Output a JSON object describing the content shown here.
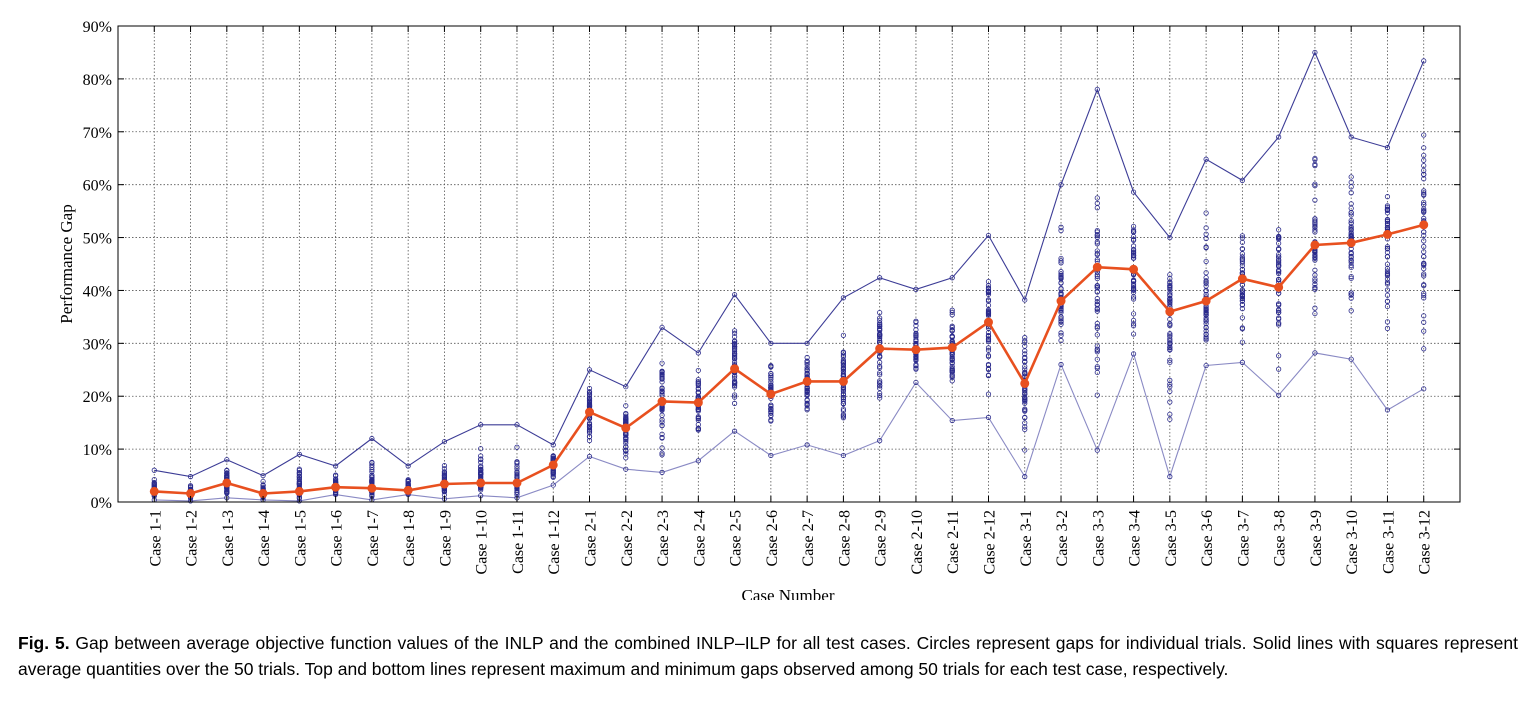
{
  "caption": {
    "label": "Fig. 5.",
    "text": " Gap between average objective function values of the INLP and the combined INLP–ILP for all test cases. Circles represent gaps for individual trials. Solid lines with squares represent average quantities over the 50 trials. Top and bottom lines represent maximum and minimum gaps observed among 50 trials for each test case, respectively."
  },
  "chart_data": {
    "type": "line",
    "xlabel": "Case Number",
    "ylabel": "Performance Gap",
    "ylim": [
      0,
      90
    ],
    "yticks": [
      0,
      10,
      20,
      30,
      40,
      50,
      60,
      70,
      80,
      90
    ],
    "ytick_labels": [
      "0%",
      "10%",
      "20%",
      "30%",
      "40%",
      "50%",
      "60%",
      "70%",
      "80%",
      "90%"
    ],
    "grid": true,
    "legend": "none",
    "colors": {
      "average": "#e8501f",
      "max": "#3c3c96",
      "min": "#8a8ac4",
      "trials": "#2a2a8c"
    },
    "categories": [
      "Case 1-1",
      "Case 1-2",
      "Case 1-3",
      "Case 1-4",
      "Case 1-5",
      "Case 1-6",
      "Case 1-7",
      "Case 1-8",
      "Case 1-9",
      "Case 1-10",
      "Case 1-11",
      "Case 1-12",
      "Case 2-1",
      "Case 2-2",
      "Case 2-3",
      "Case 2-4",
      "Case 2-5",
      "Case 2-6",
      "Case 2-7",
      "Case 2-8",
      "Case 2-9",
      "Case 2-10",
      "Case 2-11",
      "Case 2-12",
      "Case 3-1",
      "Case 3-2",
      "Case 3-3",
      "Case 3-4",
      "Case 3-5",
      "Case 3-6",
      "Case 3-7",
      "Case 3-8",
      "Case 3-9",
      "Case 3-10",
      "Case 3-11",
      "Case 3-12"
    ],
    "series": [
      {
        "values": [
          2.0,
          1.6,
          3.6,
          1.6,
          2.0,
          2.8,
          2.6,
          2.2,
          3.4,
          3.6,
          3.6,
          7.0,
          17.0,
          14.0,
          19.0,
          18.8,
          25.2,
          20.4,
          22.8,
          22.8,
          29.0,
          28.8,
          29.2,
          34.0,
          22.4,
          38.0,
          44.4,
          44.0,
          36.0,
          38.0,
          42.2,
          40.6,
          48.6,
          49.0,
          50.6,
          52.4
        ]
      },
      {
        "values": [
          6.0,
          4.8,
          8.0,
          5.0,
          9.0,
          6.8,
          12.0,
          6.8,
          11.4,
          14.6,
          14.6,
          10.8,
          25.0,
          21.8,
          33.0,
          28.2,
          39.2,
          30.0,
          30.0,
          38.6,
          42.4,
          40.2,
          42.4,
          50.4,
          38.2,
          60.0,
          78.0,
          58.6,
          50.0,
          64.8,
          60.8,
          69.0,
          85.0,
          69.0,
          67.0,
          83.4
        ]
      },
      {
        "values": [
          0.4,
          0.2,
          0.8,
          0.4,
          0.2,
          1.4,
          0.4,
          1.4,
          0.6,
          1.2,
          0.8,
          3.2,
          8.6,
          6.2,
          5.6,
          7.8,
          13.4,
          8.8,
          10.8,
          8.8,
          11.6,
          22.6,
          15.4,
          16.0,
          4.8,
          26.0,
          9.8,
          28.0,
          4.8,
          25.8,
          26.4,
          20.2,
          28.2,
          27.0,
          17.4,
          21.4
        ]
      }
    ]
  }
}
